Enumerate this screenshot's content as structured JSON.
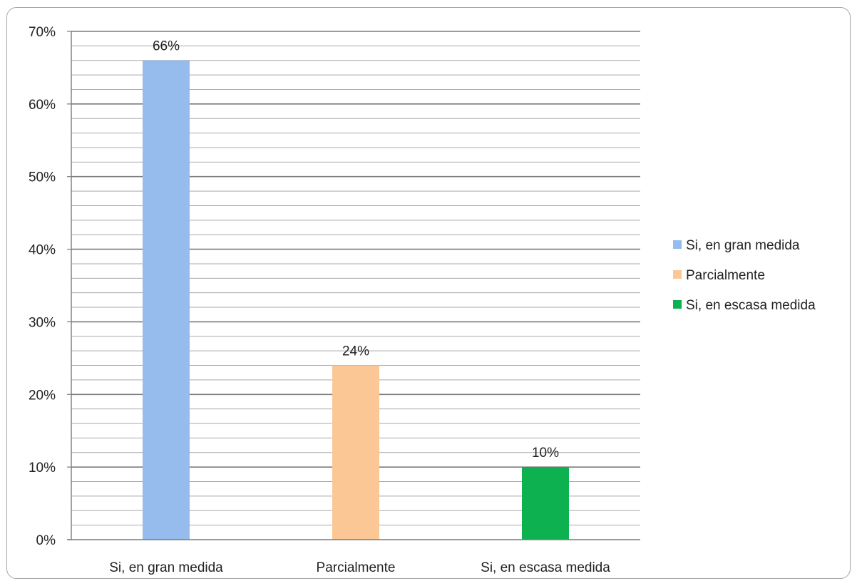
{
  "chart_data": {
    "type": "bar",
    "categories": [
      "Si, en gran medida",
      "Parcialmente",
      "Si, en escasa medida"
    ],
    "values": [
      66,
      24,
      10
    ],
    "data_labels": [
      "66%",
      "24%",
      "10%"
    ],
    "colors": [
      "#95BCEC",
      "#FBC794",
      "#0DB150"
    ],
    "ylim": [
      0,
      70
    ],
    "y_major_step": 10,
    "y_minor_step": 2,
    "y_ticks": [
      "0%",
      "10%",
      "20%",
      "30%",
      "40%",
      "50%",
      "60%",
      "70%"
    ],
    "title": "",
    "xlabel": "",
    "ylabel": "",
    "grid": true,
    "legend": {
      "position": "right",
      "entries": [
        "Si, en gran medida",
        "Parcialmente",
        "Si, en escasa medida"
      ]
    }
  }
}
